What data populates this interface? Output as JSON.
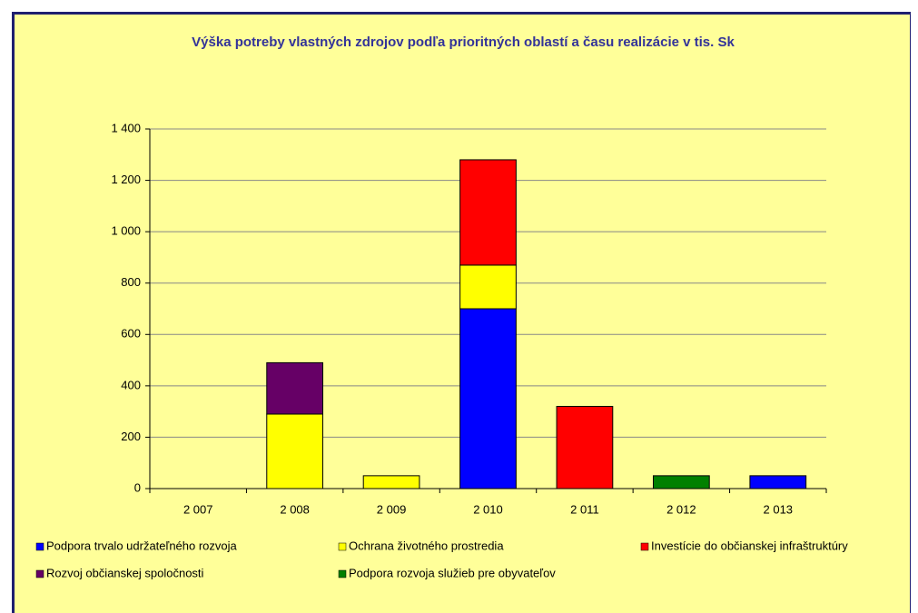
{
  "chart_data": {
    "type": "stacked-bar",
    "title": "Výška potreby vlastných zdrojov podľa prioritných oblastí a času realizácie v tis. Sk",
    "categories": [
      "2 007",
      "2 008",
      "2 009",
      "2 010",
      "2 011",
      "2 012",
      "2 013"
    ],
    "series": [
      {
        "name": "Podpora trvalo udržateľného rozvoja",
        "color": "#0000ff",
        "values": [
          null,
          null,
          null,
          700,
          null,
          null,
          50
        ]
      },
      {
        "name": "Ochrana životného prostredia",
        "color": "#ffff00",
        "values": [
          null,
          290,
          50,
          170,
          null,
          null,
          null
        ]
      },
      {
        "name": "Investície do občianskej infraštruktúry",
        "color": "#ff0000",
        "values": [
          null,
          null,
          null,
          410,
          320,
          null,
          null
        ]
      },
      {
        "name": "Rozvoj občianskej spoločnosti",
        "color": "#660066",
        "values": [
          null,
          200,
          null,
          null,
          null,
          null,
          null
        ]
      },
      {
        "name": "Podpora rozvoja služieb pre obyvateľov",
        "color": "#008000",
        "values": [
          null,
          null,
          null,
          null,
          null,
          50,
          null
        ]
      }
    ],
    "ylim": [
      0,
      1400
    ],
    "yticks": [
      0,
      200,
      400,
      600,
      800,
      {
        "value": 1000,
        "label": "1 000"
      },
      {
        "value": 1200,
        "label": "1 200"
      },
      {
        "value": 1400,
        "label": "1 400"
      }
    ],
    "grid": true,
    "legend": "bottom"
  }
}
